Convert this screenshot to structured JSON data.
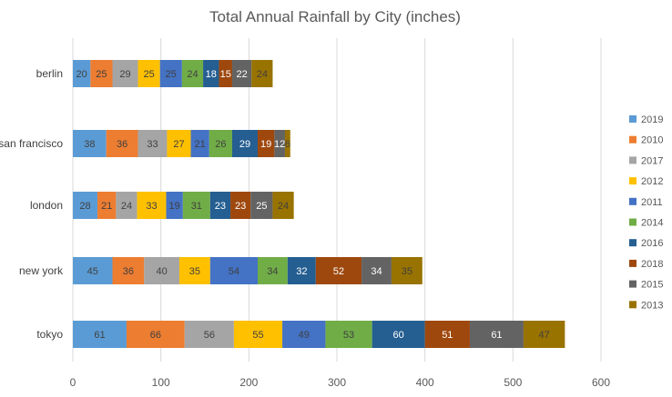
{
  "chart_data": {
    "type": "bar",
    "orientation": "horizontal",
    "stacked": true,
    "title": "Total Annual Rainfall by City (inches)",
    "categories": [
      "berlin",
      "san francisco",
      "london",
      "new york",
      "tokyo"
    ],
    "xlim": [
      0,
      600
    ],
    "xticks": [
      0,
      100,
      200,
      300,
      400,
      500,
      600
    ],
    "grid": true,
    "legend_position": "right",
    "series": [
      {
        "name": "2019",
        "color": "#5B9BD5",
        "values": [
          20,
          38,
          28,
          45,
          61
        ]
      },
      {
        "name": "2010",
        "color": "#ED7D31",
        "values": [
          25,
          36,
          21,
          36,
          66
        ]
      },
      {
        "name": "2017",
        "color": "#A5A5A5",
        "values": [
          29,
          33,
          24,
          40,
          56
        ]
      },
      {
        "name": "2012",
        "color": "#FFC000",
        "values": [
          25,
          27,
          33,
          35,
          55
        ]
      },
      {
        "name": "2011",
        "color": "#4472C4",
        "values": [
          25,
          21,
          19,
          54,
          49
        ]
      },
      {
        "name": "2014",
        "color": "#70AD47",
        "values": [
          24,
          26,
          31,
          34,
          53
        ]
      },
      {
        "name": "2016",
        "color": "#255E91",
        "values": [
          18,
          29,
          23,
          32,
          60
        ]
      },
      {
        "name": "2018",
        "color": "#9E480E",
        "values": [
          15,
          19,
          23,
          52,
          51
        ]
      },
      {
        "name": "2015",
        "color": "#636363",
        "values": [
          22,
          12,
          25,
          34,
          61
        ]
      },
      {
        "name": "2013",
        "color": "#997300",
        "values": [
          24,
          6,
          24,
          35,
          47
        ]
      }
    ]
  }
}
